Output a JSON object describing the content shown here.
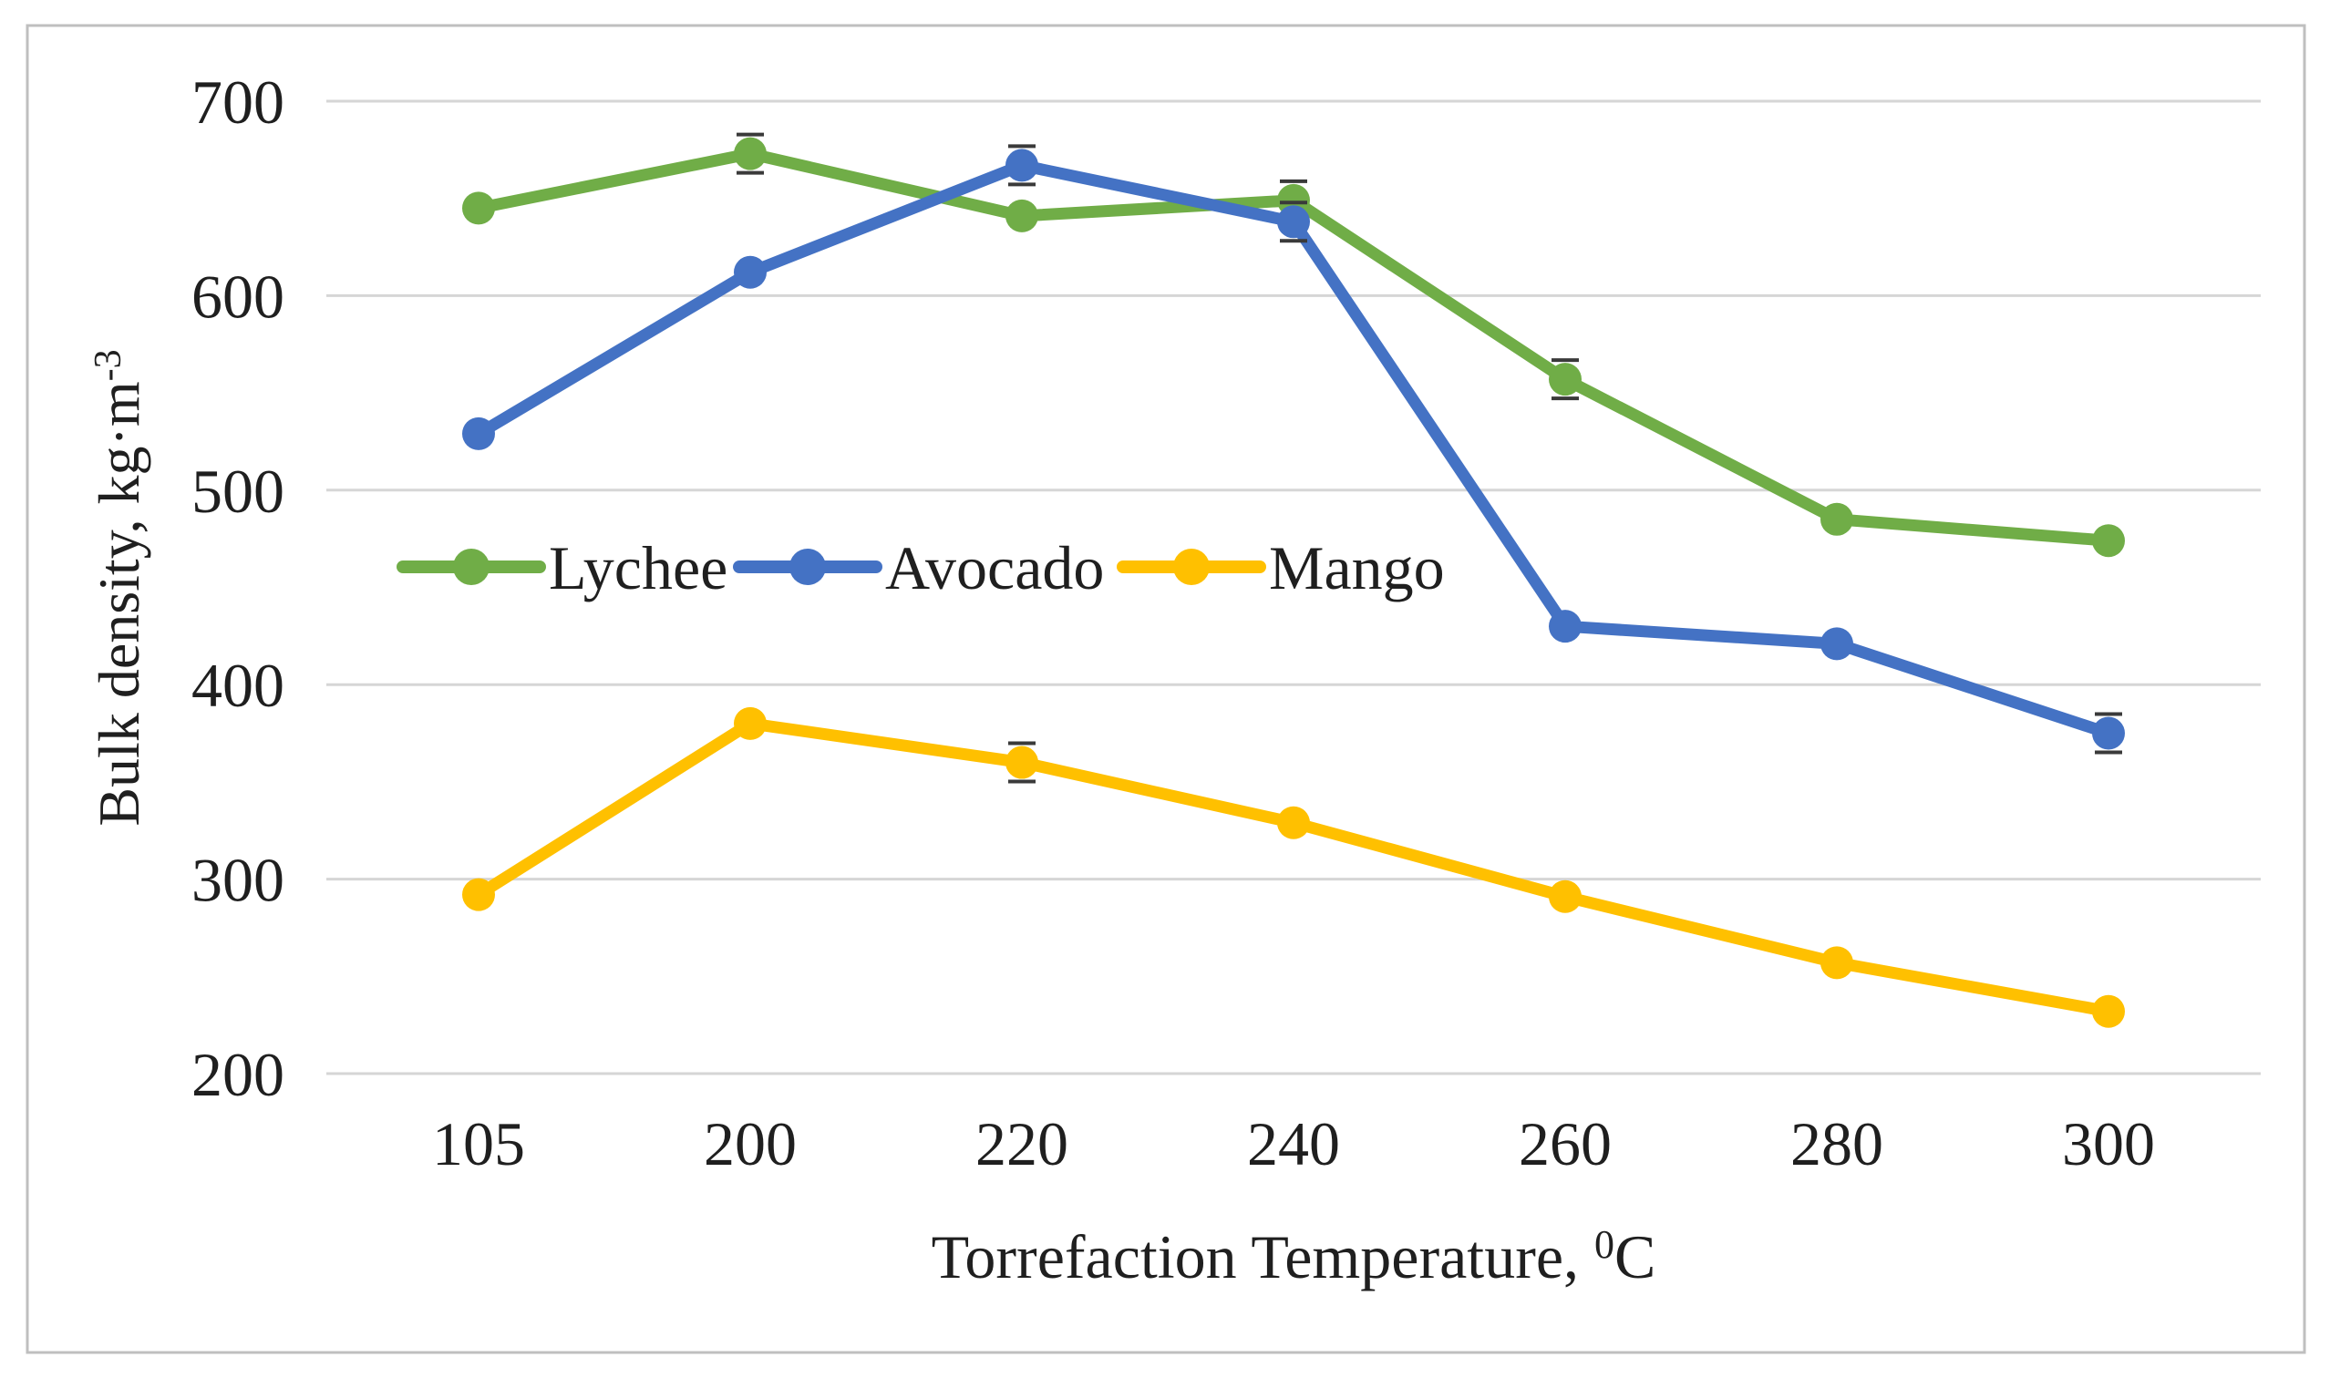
{
  "figure": {
    "background": "#ffffff",
    "border_color": "#bfbfbf",
    "text_color": "#1f1f1f",
    "gridline_color": "#d6d6d6",
    "error_bar_color": "#3a3a3a"
  },
  "chart_data": {
    "type": "line",
    "categories": [
      "105",
      "200",
      "220",
      "240",
      "260",
      "280",
      "300"
    ],
    "series": [
      {
        "name": "Lychee",
        "color": "#70AD47",
        "values": [
          645,
          673,
          641,
          649,
          557,
          485,
          474
        ],
        "error_at": [
          1,
          3,
          4
        ]
      },
      {
        "name": "Avocado",
        "color": "#4472C4",
        "values": [
          529,
          612,
          667,
          638,
          430,
          421,
          375
        ],
        "error_at": [
          2,
          3,
          6
        ]
      },
      {
        "name": "Mango",
        "color": "#FFC000",
        "values": [
          292,
          380,
          360,
          329,
          291,
          257,
          232
        ],
        "error_at": [
          2
        ]
      }
    ],
    "title": "",
    "xlabel_main": "Torrefaction Temperature, ",
    "xlabel_sup": "0",
    "xlabel_after": "C",
    "ylabel_main": "Bulk density, kg·m",
    "ylabel_sup": "-3",
    "yticks": [
      700,
      600,
      500,
      400,
      300,
      200
    ],
    "ylim": [
      200,
      700
    ],
    "grid": "horizontal",
    "legend_position": "inside-plot-middle-left",
    "error_bar_halfspan": 10
  }
}
